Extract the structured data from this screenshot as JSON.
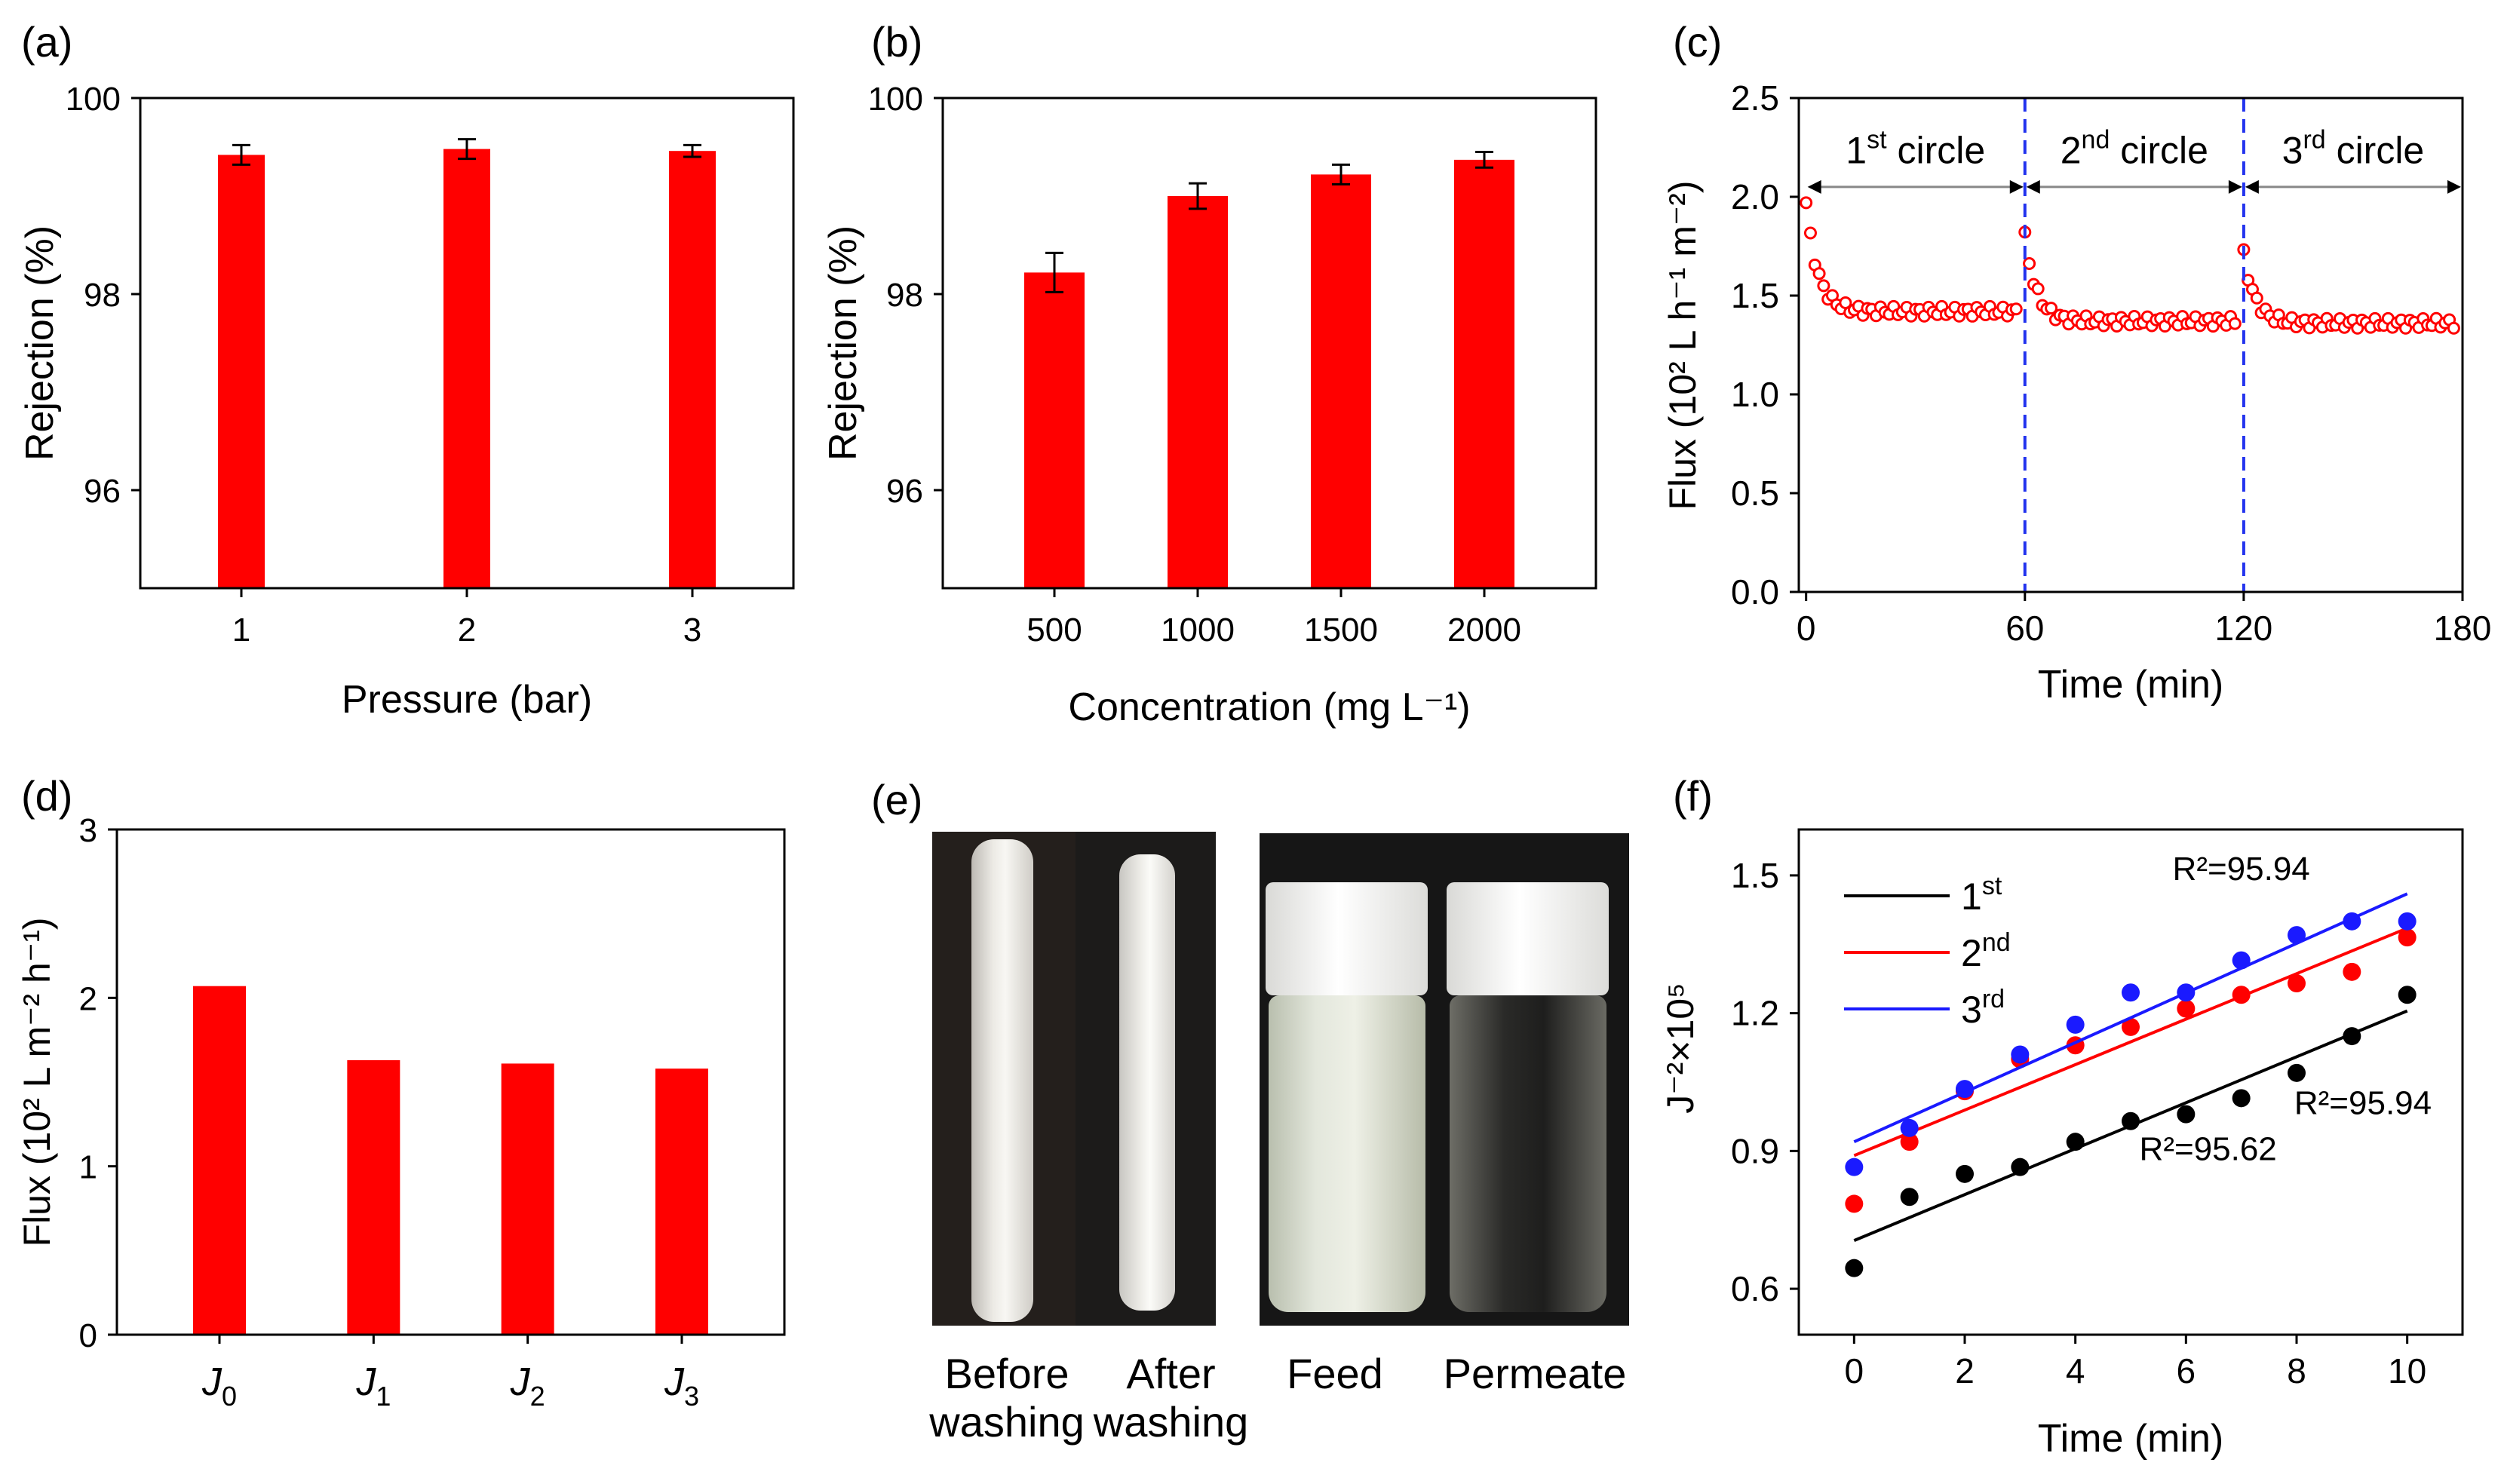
{
  "colors": {
    "bar": "#ff0000",
    "red": "#ff0000",
    "blue": "#1a1aff",
    "black": "#000000",
    "divider": "#2233ee"
  },
  "panels": {
    "e": {
      "label": "(e)",
      "caption_before_l1": "Before",
      "caption_before_l2": "washing",
      "caption_after_l1": "After",
      "caption_after_l2": "washing",
      "caption_feed": "Feed",
      "caption_permeate": "Permeate"
    }
  },
  "chart_data": [
    {
      "id": "a",
      "label": "(a)",
      "type": "bar",
      "categories": [
        "1",
        "2",
        "3"
      ],
      "values": [
        99.42,
        99.48,
        99.46
      ],
      "errors": [
        0.1,
        0.1,
        0.06
      ],
      "xlabel": "Pressure (bar)",
      "ylabel": "Rejection (%)",
      "ylim": [
        95,
        100
      ],
      "yticks": [
        "96",
        "98",
        "100"
      ],
      "ytick_values": [
        96,
        98,
        100
      ]
    },
    {
      "id": "b",
      "label": "(b)",
      "type": "bar",
      "categories": [
        "500",
        "1000",
        "1500",
        "2000"
      ],
      "values": [
        98.22,
        99.0,
        99.22,
        99.37
      ],
      "errors": [
        0.2,
        0.13,
        0.1,
        0.08
      ],
      "xlabel": "Concentration (mg L⁻¹)",
      "ylabel": "Rejection (%)",
      "ylim": [
        95,
        100
      ],
      "yticks": [
        "96",
        "98",
        "100"
      ],
      "ytick_values": [
        96,
        98,
        100
      ]
    },
    {
      "id": "c",
      "label": "(c)",
      "type": "scatter",
      "xlabel": "Time  (min)",
      "ylabel": "Flux (10² L h⁻¹ m⁻²)",
      "xlim": [
        -2,
        180
      ],
      "ylim": [
        0,
        2.5
      ],
      "xticks": [
        "0",
        "60",
        "120",
        "180"
      ],
      "xtick_values": [
        0,
        60,
        120,
        180
      ],
      "yticks": [
        "0.0",
        "0.5",
        "1.0",
        "1.5",
        "2.0",
        "2.5"
      ],
      "ytick_values": [
        0,
        0.5,
        1.0,
        1.5,
        2.0,
        2.5
      ],
      "dividers": [
        60,
        120
      ],
      "segments": [
        {
          "label": "1st circle",
          "main": "1",
          "sup": "st",
          "tail": " circle",
          "start": 0,
          "end": 60,
          "peak": 1.97,
          "steady": 1.42
        },
        {
          "label": "2nd circle",
          "main": "2",
          "sup": "nd",
          "tail": " circle",
          "start": 60,
          "end": 120,
          "peak": 1.8,
          "steady": 1.37
        },
        {
          "label": "3rd circle",
          "main": "3",
          "sup": "rd",
          "tail": " circle",
          "start": 120,
          "end": 180,
          "peak": 1.71,
          "steady": 1.36
        }
      ]
    },
    {
      "id": "d",
      "label": "(d)",
      "type": "bar",
      "categories": [
        "J0",
        "J1",
        "J2",
        "J3"
      ],
      "category_main": [
        "J",
        "J",
        "J",
        "J"
      ],
      "category_sub": [
        "0",
        "1",
        "2",
        "3"
      ],
      "values": [
        2.07,
        1.63,
        1.61,
        1.58
      ],
      "xlabel": "",
      "ylabel": "Flux (10² L m⁻² h⁻¹)",
      "ylim": [
        0,
        3
      ],
      "yticks": [
        "0",
        "1",
        "2",
        "3"
      ],
      "ytick_values": [
        0,
        1,
        2,
        3
      ]
    },
    {
      "id": "f",
      "label": "(f)",
      "type": "scatter",
      "xlabel": "Time (min)",
      "ylabel": "J⁻²×10⁵",
      "xlim": [
        -1,
        11
      ],
      "ylim": [
        0.5,
        1.6
      ],
      "xticks": [
        "0",
        "2",
        "4",
        "6",
        "8",
        "10"
      ],
      "xtick_values": [
        0,
        2,
        4,
        6,
        8,
        10
      ],
      "yticks": [
        "0.6",
        "0.9",
        "1.2",
        "1.5"
      ],
      "ytick_values": [
        0.6,
        0.9,
        1.2,
        1.5
      ],
      "x": [
        0,
        1,
        2,
        3,
        4,
        5,
        6,
        7,
        8,
        9,
        10
      ],
      "series": [
        {
          "name": "1st",
          "main": "1",
          "sup": "st",
          "color": "#000000",
          "values": [
            0.645,
            0.8,
            0.85,
            0.865,
            0.92,
            0.965,
            0.98,
            1.015,
            1.07,
            1.15,
            1.24
          ],
          "fit": [
            0.705,
            1.205
          ],
          "r2": "R²=95.62"
        },
        {
          "name": "2nd",
          "main": "2",
          "sup": "nd",
          "color": "#ff0000",
          "values": [
            0.785,
            0.92,
            1.03,
            1.1,
            1.13,
            1.17,
            1.21,
            1.24,
            1.265,
            1.29,
            1.365
          ],
          "fit": [
            0.89,
            1.385
          ],
          "r2": "R²=95.94"
        },
        {
          "name": "3rd",
          "main": "3",
          "sup": "rd",
          "color": "#1a1aff",
          "values": [
            0.865,
            0.95,
            1.035,
            1.11,
            1.175,
            1.245,
            1.245,
            1.315,
            1.37,
            1.4,
            1.4
          ],
          "fit": [
            0.92,
            1.46
          ],
          "r2": "R²=95.94"
        }
      ]
    }
  ]
}
